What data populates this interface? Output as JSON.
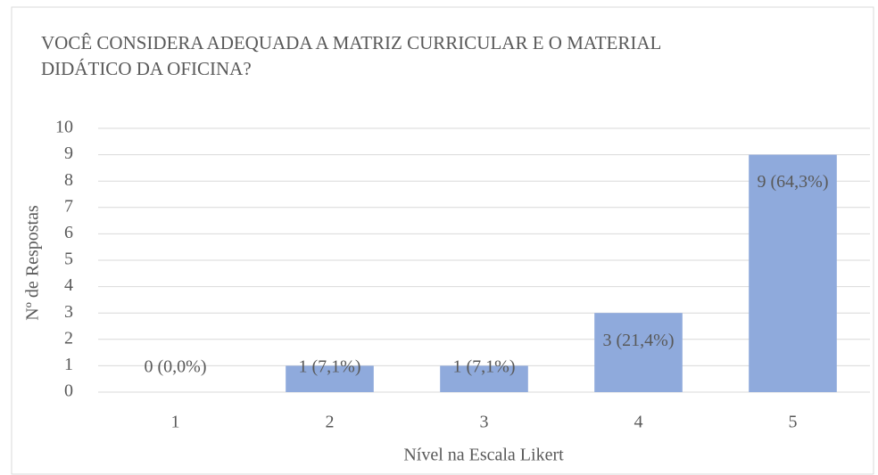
{
  "chart_data": {
    "type": "bar",
    "title": "VOCÊ CONSIDERA ADEQUADA  A  MATRIZ CURRICULAR E O MATERIAL  DIDÁTICO DA OFICINA?",
    "x_label": "Nível na Escala Likert",
    "y_label": "Nº de Respostas",
    "categories": [
      "1",
      "2",
      "3",
      "4",
      "5"
    ],
    "values": [
      0,
      1,
      1,
      3,
      9
    ],
    "value_labels": [
      "0 (0,0%)",
      "1 (7,1%)",
      "1 (7,1%)",
      "3 (21,4%)",
      "9 (64,3%)"
    ],
    "color": "#8faadc",
    "ylim": [
      0,
      10
    ],
    "yticks": [
      0,
      1,
      2,
      3,
      4,
      5,
      6,
      7,
      8,
      9,
      10
    ],
    "grid": true
  }
}
